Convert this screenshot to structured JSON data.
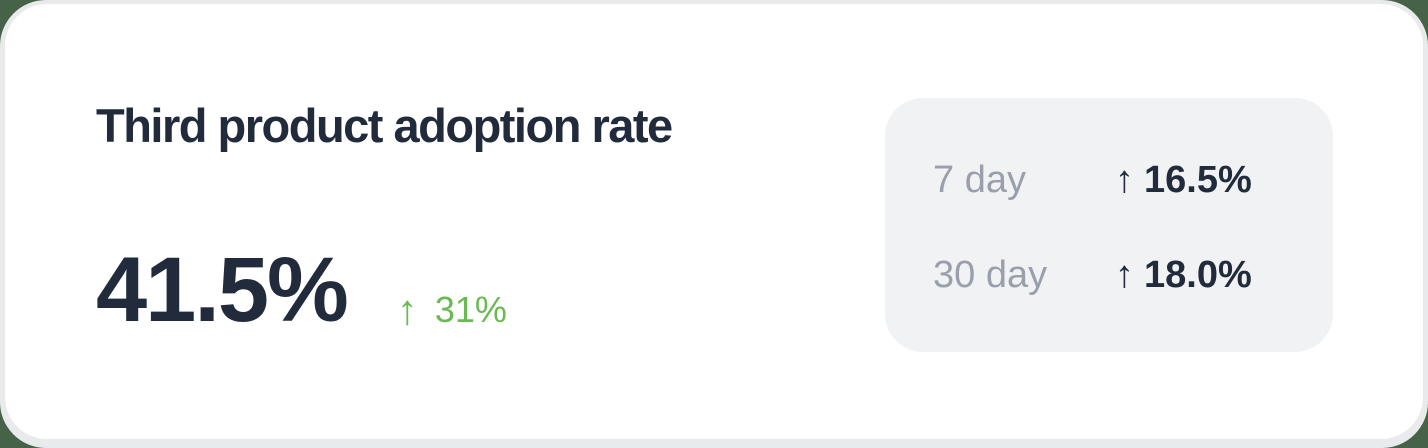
{
  "colors": {
    "page_background": "#466349",
    "card_ring": "#e9eaec",
    "card_background": "#ffffff",
    "panel_background": "#f1f2f4",
    "text_primary": "#212b3c",
    "text_muted": "#9aa0ab",
    "positive": "#6ab953"
  },
  "card": {
    "title": "Third product adoption rate",
    "metric": {
      "value": "41.5%",
      "change_arrow": "↑",
      "change_value": "31%"
    },
    "trend_panel": {
      "rows": [
        {
          "label": "7 day",
          "arrow": "↑",
          "value": "16.5%"
        },
        {
          "label": "30 day",
          "arrow": "↑",
          "value": "18.0%"
        }
      ]
    }
  },
  "chart_data": {
    "type": "table",
    "title": "Third product adoption rate",
    "current_value_pct": 41.5,
    "overall_change": {
      "direction": "up",
      "value_pct": 31
    },
    "trends": [
      {
        "period": "7 day",
        "direction": "up",
        "change_pct": 16.5
      },
      {
        "period": "30 day",
        "direction": "up",
        "change_pct": 18.0
      }
    ],
    "legend_position": "none",
    "grid": false
  }
}
